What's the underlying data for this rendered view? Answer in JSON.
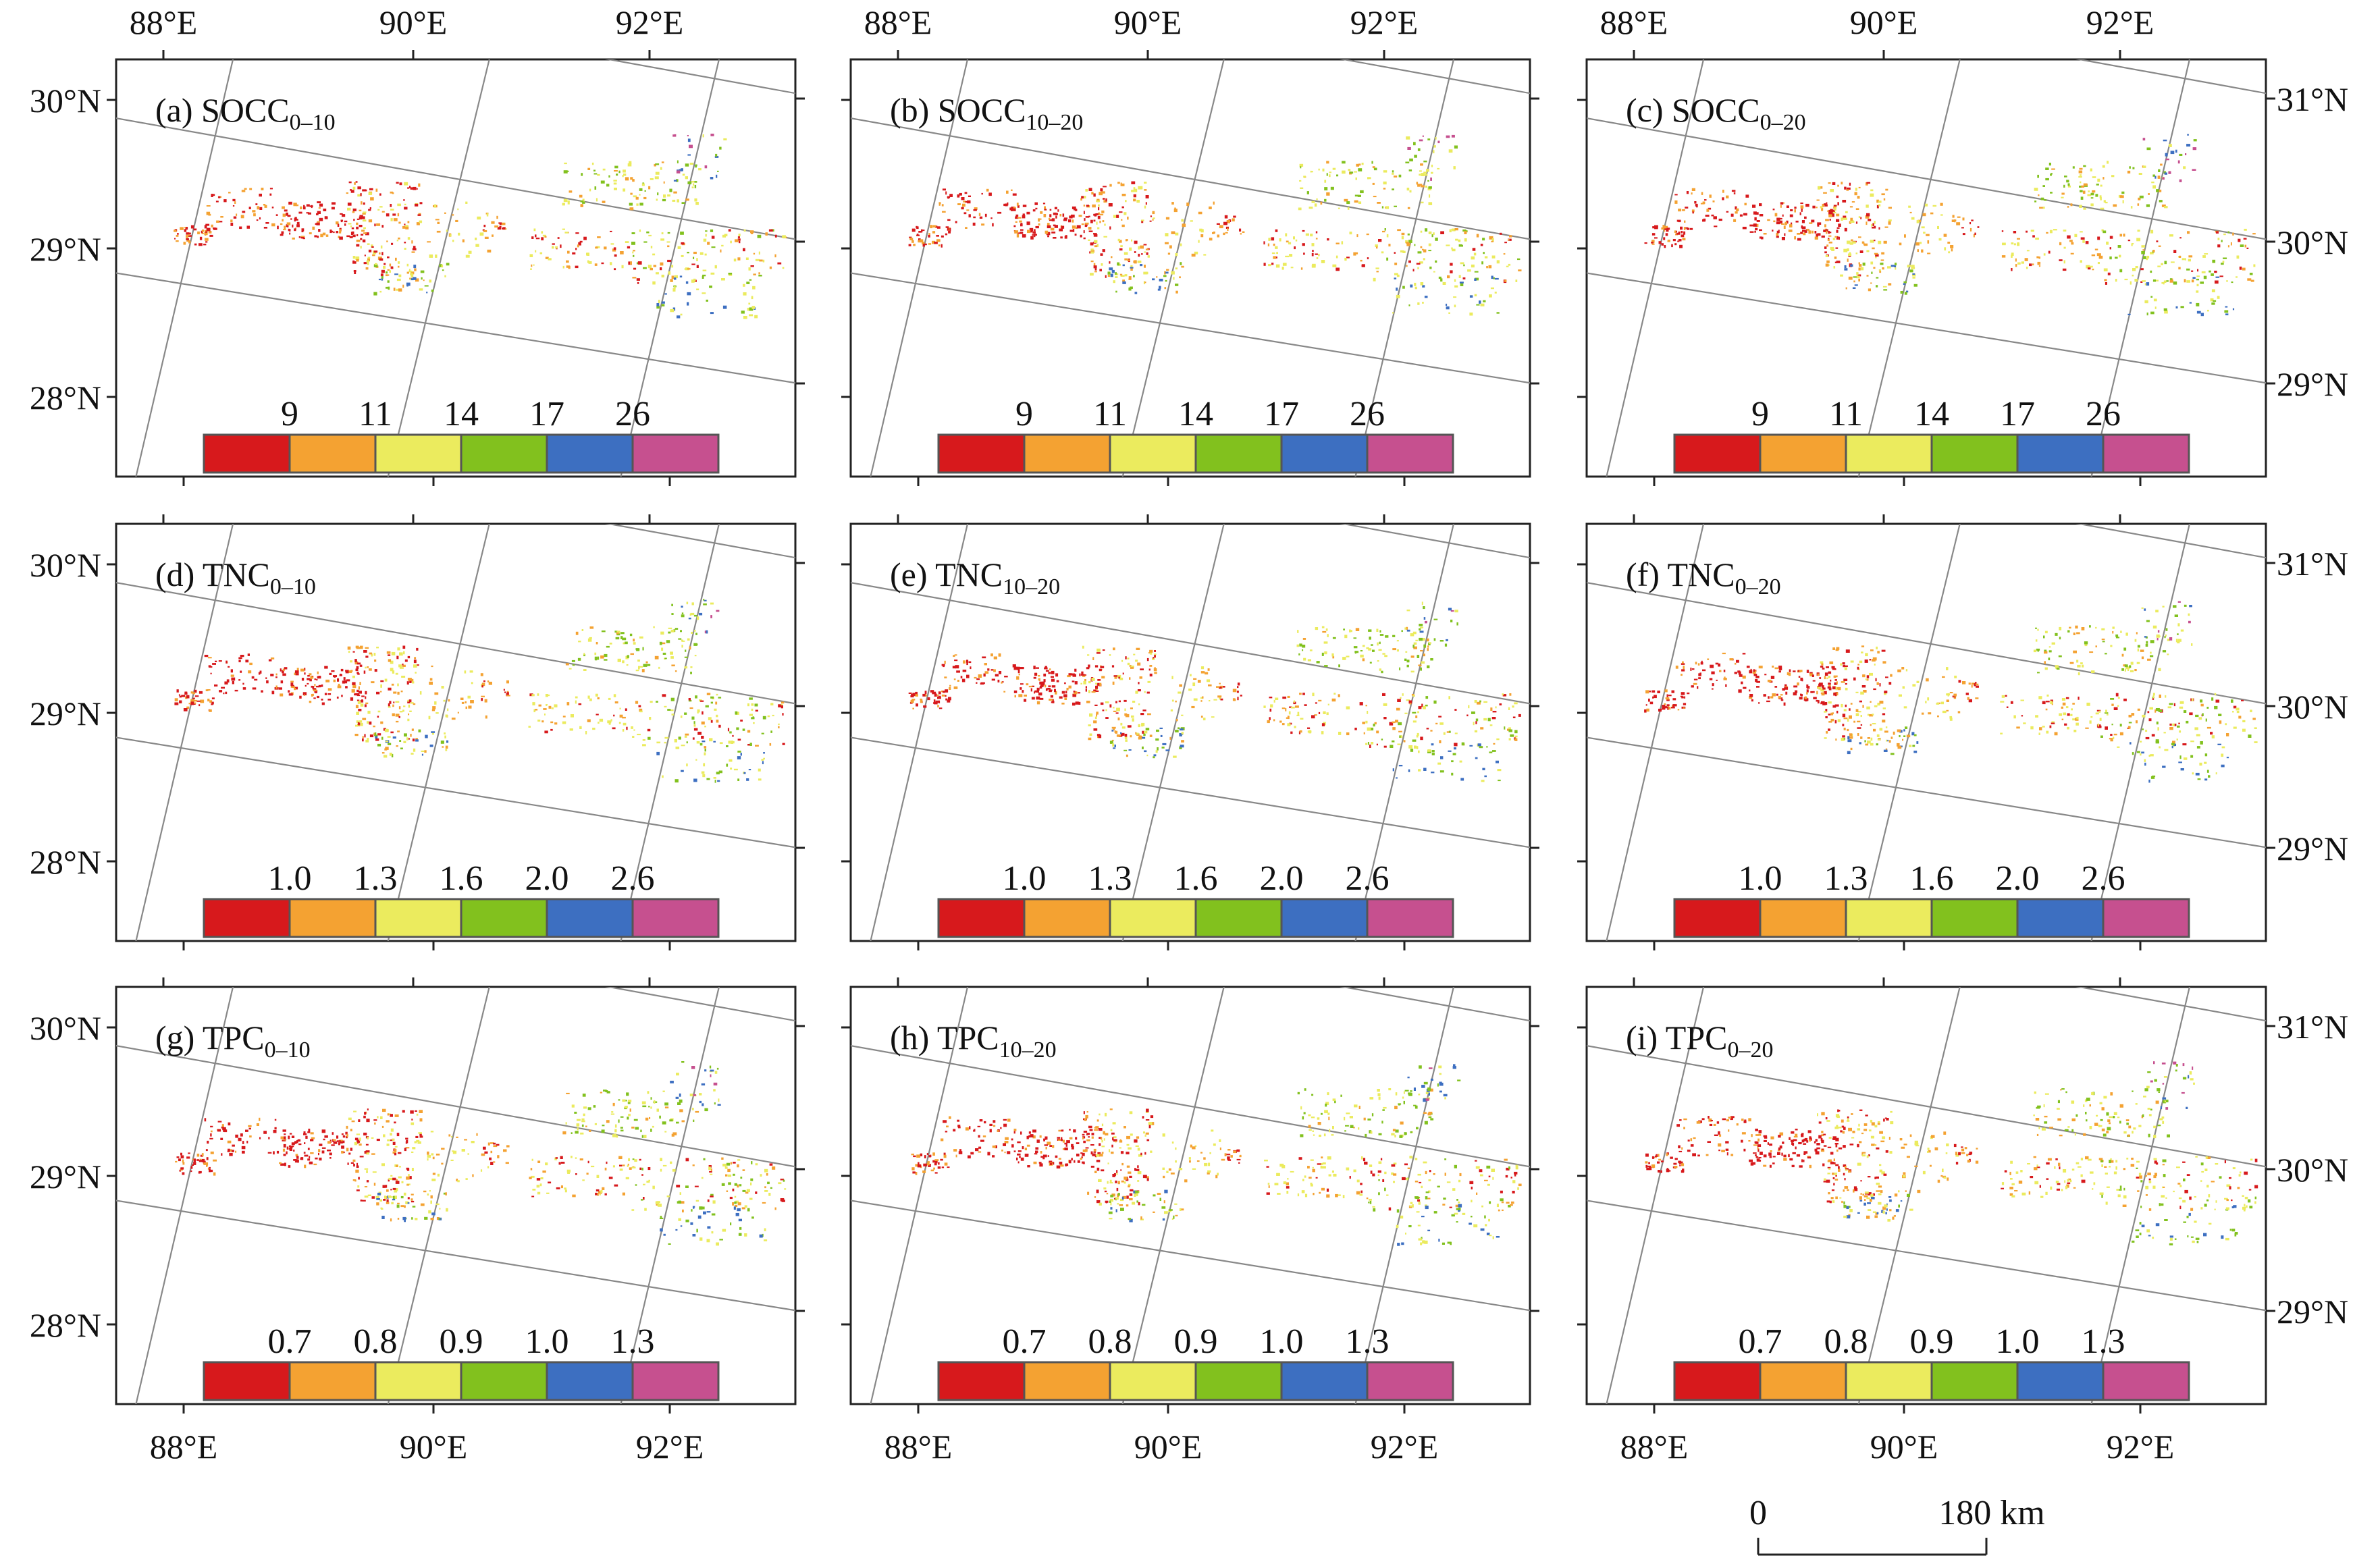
{
  "colors": {
    "bins": [
      "#d7191c",
      "#f4a232",
      "#ebeb5e",
      "#82c11e",
      "#3d6fc1",
      "#c6508f"
    ],
    "graticule": "#888888",
    "frame": "#222222"
  },
  "graticule": {
    "top_lon_labels": [
      "88°E",
      "90°E",
      "92°E"
    ],
    "bottom_lon_labels": [
      "88°E",
      "90°E",
      "92°E"
    ],
    "left_lat_labels": [
      "30°N",
      "29°N",
      "28°N"
    ],
    "right_lat_labels": [
      "31°N",
      "30°N",
      "29°N"
    ]
  },
  "panels": [
    {
      "id": "a",
      "prefix": "(a) SOCC",
      "sub": "0–10",
      "legend_labels": [
        "9",
        "11",
        "14",
        "17",
        "26"
      ]
    },
    {
      "id": "b",
      "prefix": "(b) SOCC",
      "sub": "10–20",
      "legend_labels": [
        "9",
        "11",
        "14",
        "17",
        "26"
      ]
    },
    {
      "id": "c",
      "prefix": "(c) SOCC",
      "sub": "0–20",
      "legend_labels": [
        "9",
        "11",
        "14",
        "17",
        "26"
      ]
    },
    {
      "id": "d",
      "prefix": "(d) TNC",
      "sub": "0–10",
      "legend_labels": [
        "1.0",
        "1.3",
        "1.6",
        "2.0",
        "2.6"
      ]
    },
    {
      "id": "e",
      "prefix": "(e) TNC",
      "sub": "10–20",
      "legend_labels": [
        "1.0",
        "1.3",
        "1.6",
        "2.0",
        "2.6"
      ]
    },
    {
      "id": "f",
      "prefix": "(f) TNC",
      "sub": "0–20",
      "legend_labels": [
        "1.0",
        "1.3",
        "1.6",
        "2.0",
        "2.6"
      ]
    },
    {
      "id": "g",
      "prefix": "(g) TPC",
      "sub": "0–10",
      "legend_labels": [
        "0.7",
        "0.8",
        "0.9",
        "1.0",
        "1.3"
      ]
    },
    {
      "id": "h",
      "prefix": "(h) TPC",
      "sub": "10–20",
      "legend_labels": [
        "0.7",
        "0.8",
        "0.9",
        "1.0",
        "1.3"
      ]
    },
    {
      "id": "i",
      "prefix": "(i) TPC",
      "sub": "0–20",
      "legend_labels": [
        "0.7",
        "0.8",
        "0.9",
        "1.0",
        "1.3"
      ]
    }
  ],
  "scale_bar": {
    "zero": "0",
    "end": "180 km"
  }
}
